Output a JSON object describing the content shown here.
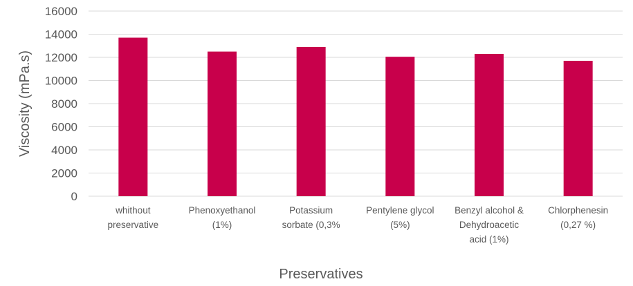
{
  "chart_data": {
    "type": "bar",
    "title": "",
    "xlabel": "Preservatives",
    "ylabel": "Viscosity (mPa.s)",
    "ylim": [
      0,
      16000
    ],
    "yticks": [
      0,
      2000,
      4000,
      6000,
      8000,
      10000,
      12000,
      14000,
      16000
    ],
    "grid": true,
    "legend": "none",
    "bar_color": "#C8004B",
    "grid_color": "#D9D9D9",
    "text_color": "#595959",
    "categories": [
      [
        "whithout",
        "preservative"
      ],
      [
        "Phenoxyethanol",
        "(1%)"
      ],
      [
        "Potassium",
        "sorbate (0,3%"
      ],
      [
        "Pentylene glycol",
        "(5%)"
      ],
      [
        "Benzyl alcohol &",
        "Dehydroacetic",
        "acid (1%)"
      ],
      [
        "Chlorphenesin",
        "(0,27 %)"
      ]
    ],
    "values": [
      13700,
      12500,
      12900,
      12050,
      12300,
      11700
    ]
  }
}
